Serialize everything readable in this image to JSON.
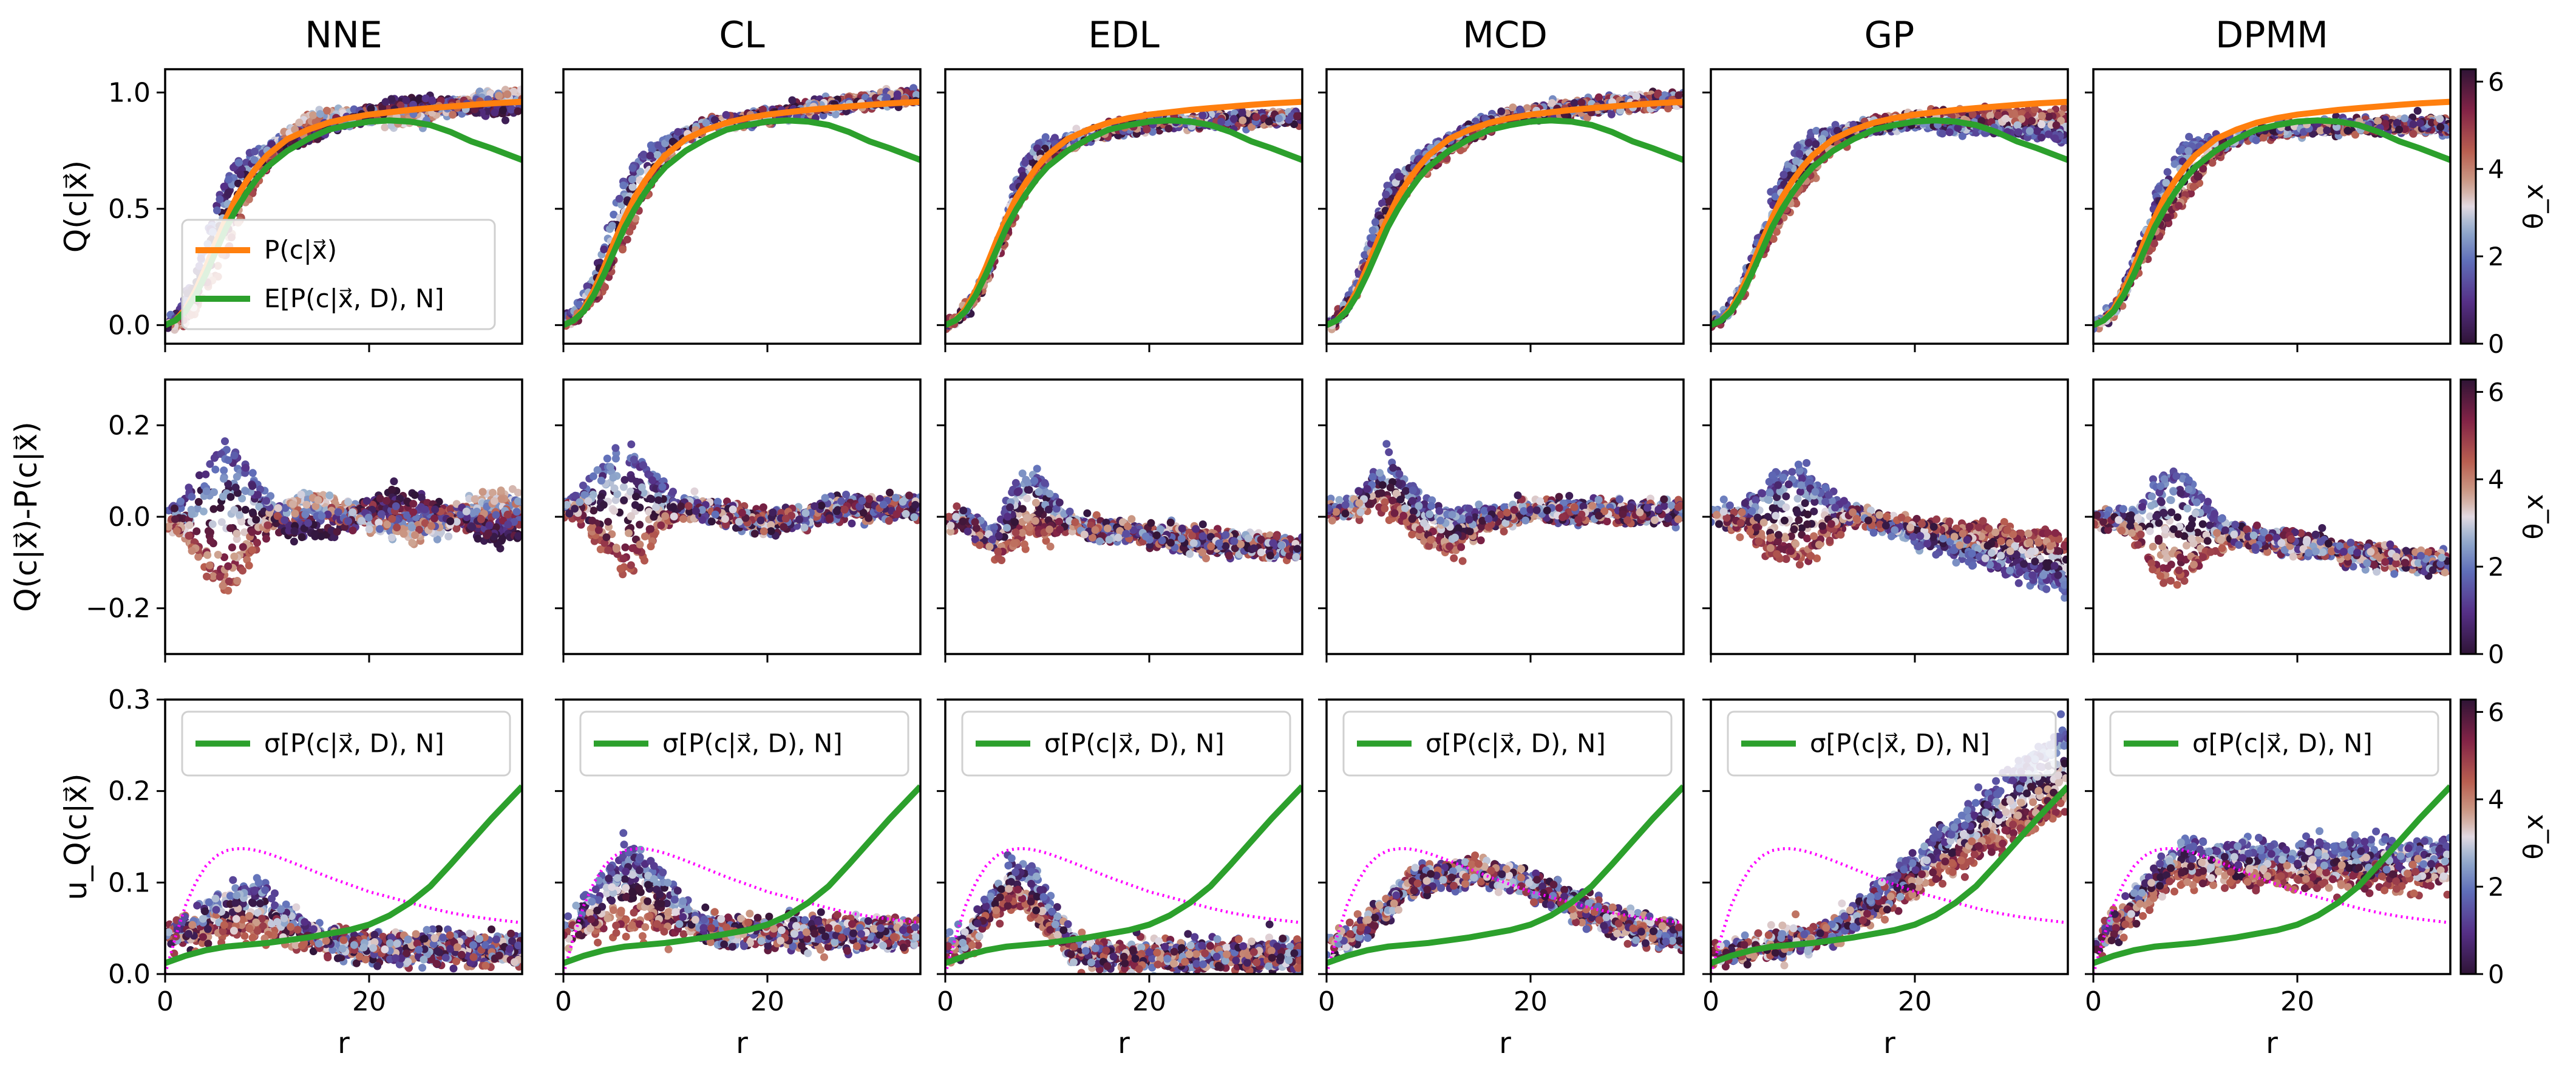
{
  "figure": {
    "columns": [
      "NNE",
      "CL",
      "EDL",
      "MCD",
      "GP",
      "DPMM"
    ],
    "row_ylabels": [
      "Q(c|x⃗)",
      "Q(c|x⃗)-P(c|x⃗)",
      "u_Q(c|x⃗)"
    ],
    "xlabel": "r",
    "colorbar_label": "θ_x",
    "colorbar_ticks": [
      0,
      2,
      4,
      6
    ],
    "colormap": "twilight_shifted",
    "colors": {
      "truth_line": "#ff7f0e",
      "expectation_line": "#2ca02c",
      "reference_dotted": "#ff00ff"
    }
  },
  "chart_data": [
    {
      "row": 0,
      "type": "scatter",
      "xlim": [
        0,
        35
      ],
      "ylim": [
        -0.08,
        1.1
      ],
      "xticks": [
        0,
        20
      ],
      "yticks": [
        0.0,
        0.5,
        1.0
      ],
      "ytick_labels": [
        "0.0",
        "0.5",
        "1.0"
      ],
      "ylabel": "Q(c|x⃗)",
      "legend": {
        "location": "lower-left",
        "panel": 0,
        "entries": [
          {
            "label": "P(c|x⃗)",
            "color": "#ff7f0e"
          },
          {
            "label": "E[P(c|x⃗, D), N]",
            "color": "#2ca02c"
          }
        ]
      },
      "lines": {
        "P(c|x)": {
          "x": [
            0,
            1,
            2,
            3,
            4,
            5,
            6,
            7,
            8,
            9,
            10,
            12,
            14,
            16,
            18,
            20,
            22,
            24,
            26,
            28,
            30,
            32,
            35
          ],
          "y": [
            0.0,
            0.02,
            0.07,
            0.15,
            0.25,
            0.36,
            0.46,
            0.55,
            0.62,
            0.68,
            0.73,
            0.8,
            0.84,
            0.87,
            0.89,
            0.905,
            0.915,
            0.925,
            0.933,
            0.94,
            0.947,
            0.953,
            0.96
          ]
        },
        "E[P(c|x,D),N]": {
          "x": [
            0,
            1,
            2,
            3,
            4,
            5,
            6,
            7,
            8,
            9,
            10,
            12,
            14,
            16,
            18,
            20,
            22,
            24,
            26,
            28,
            30,
            32,
            35
          ],
          "y": [
            0.0,
            0.02,
            0.06,
            0.13,
            0.22,
            0.32,
            0.42,
            0.5,
            0.57,
            0.63,
            0.68,
            0.75,
            0.8,
            0.84,
            0.86,
            0.875,
            0.88,
            0.875,
            0.86,
            0.83,
            0.79,
            0.76,
            0.71
          ]
        }
      }
    },
    {
      "row": 1,
      "type": "scatter",
      "xlim": [
        0,
        35
      ],
      "ylim": [
        -0.3,
        0.3
      ],
      "xticks": [
        0,
        20
      ],
      "yticks": [
        -0.2,
        0.0,
        0.2
      ],
      "ytick_labels": [
        "−0.2",
        "0.0",
        "0.2"
      ],
      "ylabel": "Q(c|x⃗)-P(c|x⃗)"
    },
    {
      "row": 2,
      "type": "scatter",
      "xlim": [
        0,
        35
      ],
      "ylim": [
        0.0,
        0.3
      ],
      "xticks": [
        0,
        20
      ],
      "yticks": [
        0.0,
        0.1,
        0.2,
        0.3
      ],
      "ytick_labels": [
        "0.0",
        "0.1",
        "0.2",
        "0.3"
      ],
      "ylabel": "u_Q(c|x⃗)",
      "legend": {
        "location": "upper-left",
        "entries": [
          {
            "label": "σ[P(c|x⃗, D), N]",
            "color": "#2ca02c"
          }
        ]
      },
      "lines": {
        "sigma[P(c|x,D),N]": {
          "x": [
            0,
            1,
            2,
            4,
            6,
            8,
            10,
            12,
            14,
            16,
            18,
            20,
            22,
            24,
            26,
            28,
            30,
            32,
            35
          ],
          "y": [
            0.012,
            0.016,
            0.02,
            0.026,
            0.03,
            0.032,
            0.034,
            0.037,
            0.04,
            0.044,
            0.048,
            0.054,
            0.064,
            0.078,
            0.096,
            0.12,
            0.145,
            0.17,
            0.205
          ]
        },
        "reference_dotted": {
          "x": [
            0,
            1,
            2,
            3,
            4,
            5,
            6,
            7,
            8,
            9,
            10,
            12,
            14,
            16,
            18,
            20,
            22,
            24,
            26,
            28,
            30,
            32,
            35
          ],
          "y": [
            0.0,
            0.04,
            0.075,
            0.1,
            0.118,
            0.129,
            0.135,
            0.137,
            0.137,
            0.135,
            0.132,
            0.124,
            0.115,
            0.106,
            0.098,
            0.09,
            0.084,
            0.078,
            0.072,
            0.067,
            0.063,
            0.06,
            0.056
          ]
        }
      }
    }
  ]
}
